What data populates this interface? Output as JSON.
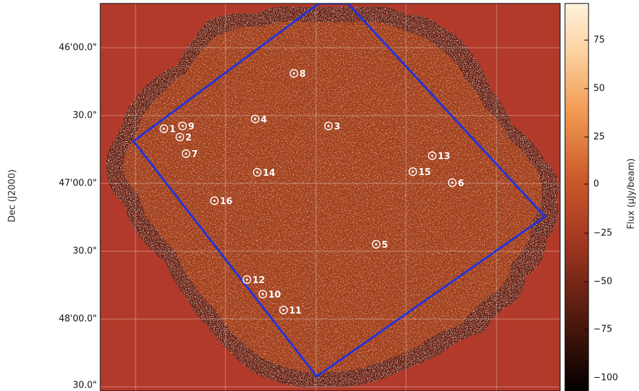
{
  "image": {
    "y_axis_label": "Dec (J2000)",
    "y_ticks": [
      "46'00.0\"",
      "30.0\"",
      "47'00.0\"",
      "30.0\"",
      "48'00.0\"",
      "30.0\""
    ],
    "background_color": "#b23a2a",
    "footprint_color": "#2233dd",
    "marker_color": "#ffffff"
  },
  "colorbar": {
    "label": "Flux (μJy/beam)",
    "ticks": [
      "75",
      "50",
      "25",
      "0",
      "−25",
      "−50",
      "−75",
      "−100"
    ]
  },
  "sources": [
    {
      "id": "1"
    },
    {
      "id": "2"
    },
    {
      "id": "3"
    },
    {
      "id": "4"
    },
    {
      "id": "5"
    },
    {
      "id": "6"
    },
    {
      "id": "7"
    },
    {
      "id": "8"
    },
    {
      "id": "9"
    },
    {
      "id": "10"
    },
    {
      "id": "11"
    },
    {
      "id": "12"
    },
    {
      "id": "13"
    },
    {
      "id": "14"
    },
    {
      "id": "15"
    },
    {
      "id": "16"
    }
  ]
}
